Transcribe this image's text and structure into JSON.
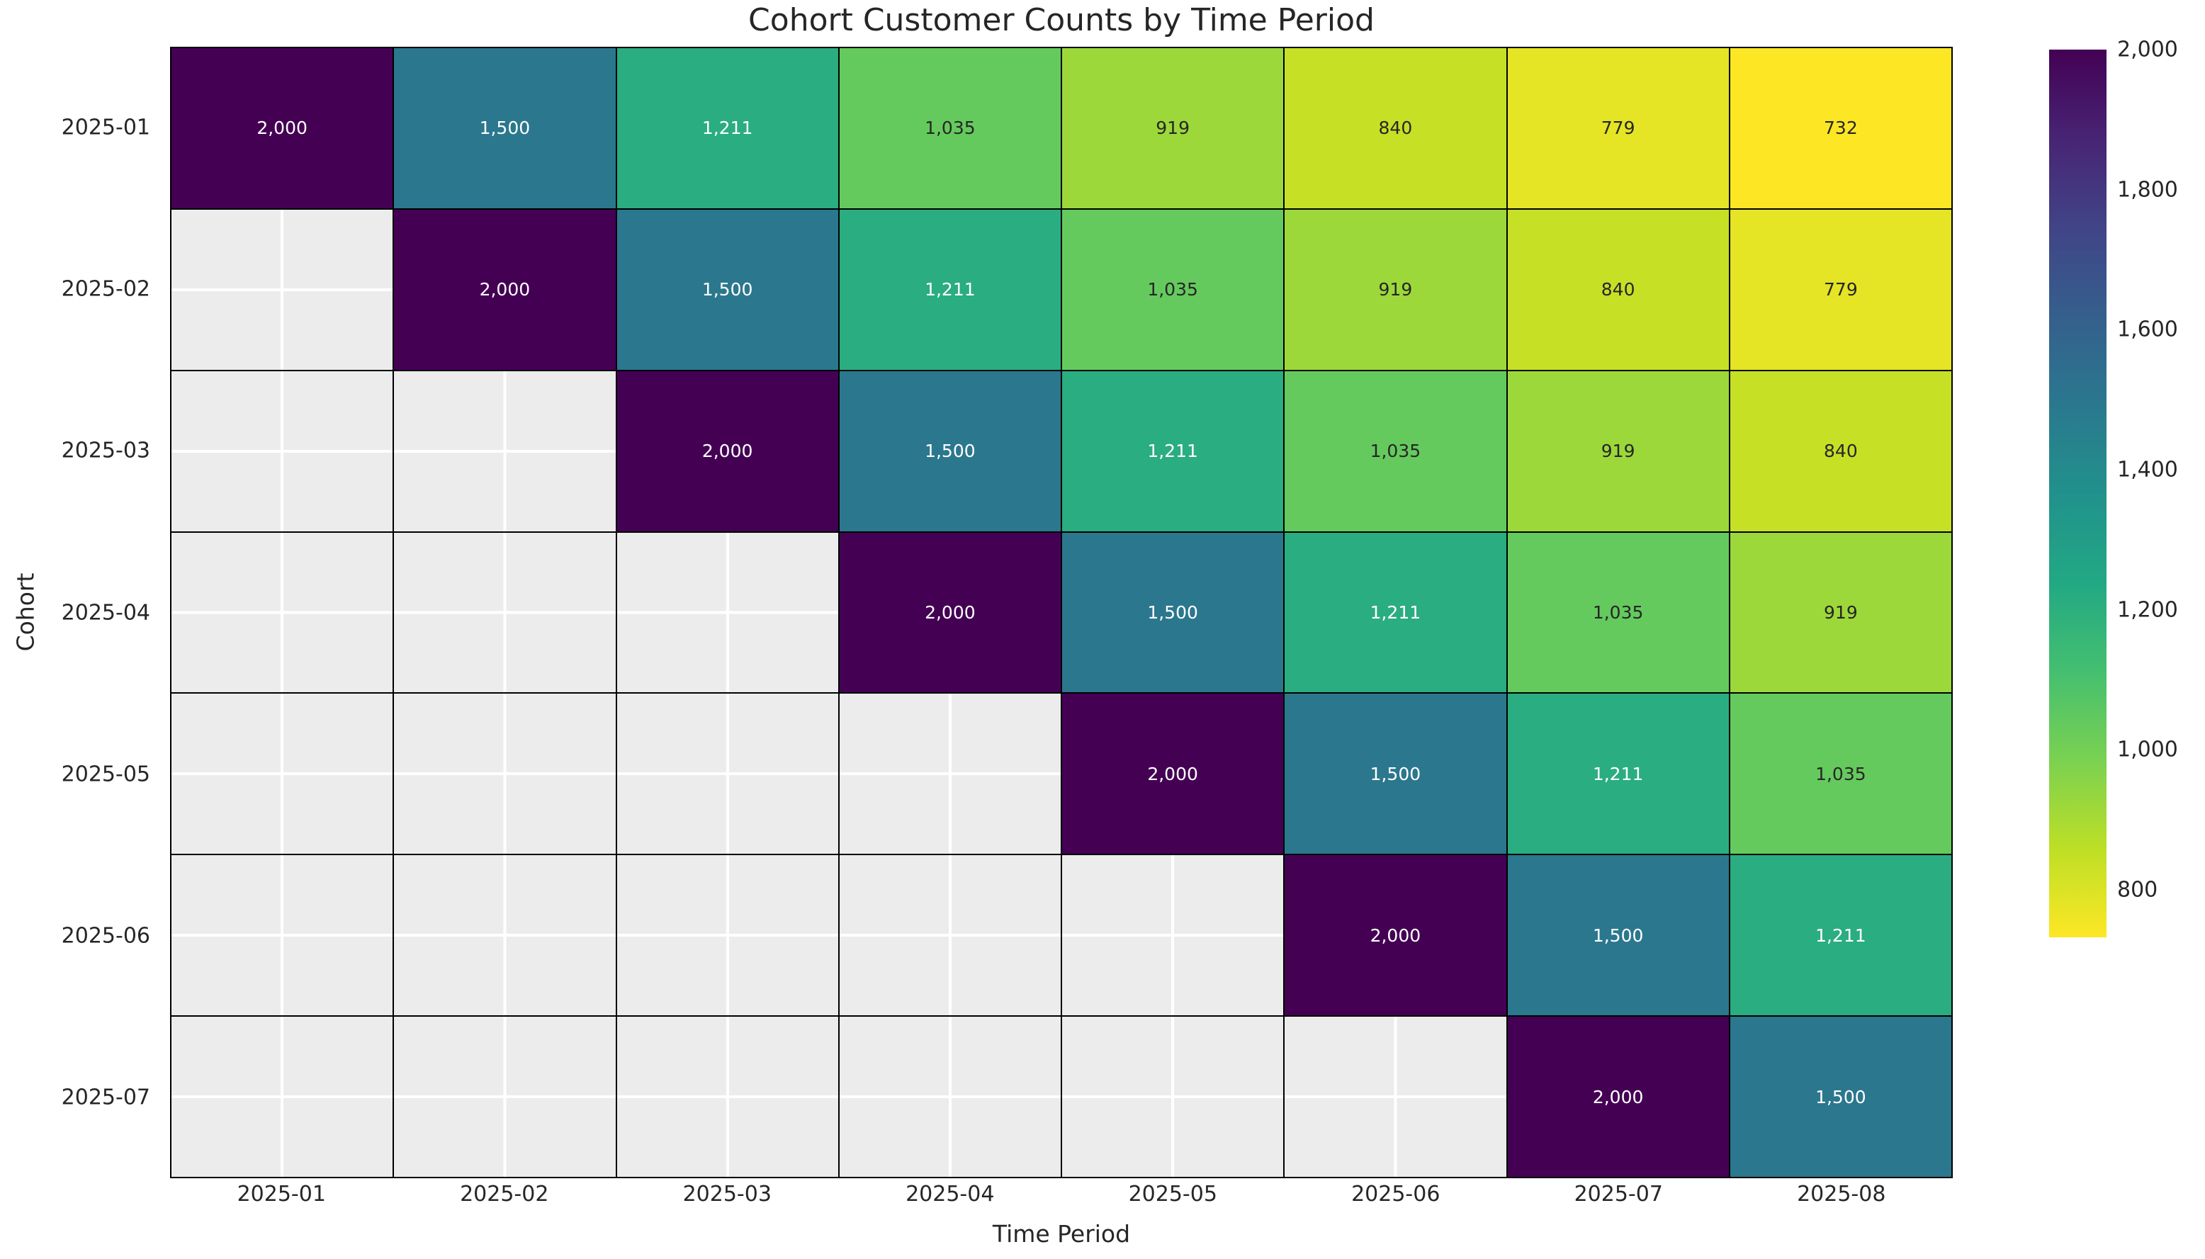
{
  "chart_data": {
    "type": "heatmap",
    "title": "Cohort Customer Counts by Time Period",
    "xlabel": "Time Period",
    "ylabel": "Cohort",
    "x_categories": [
      "2025-01",
      "2025-02",
      "2025-03",
      "2025-04",
      "2025-05",
      "2025-06",
      "2025-07",
      "2025-08"
    ],
    "y_categories": [
      "2025-01",
      "2025-02",
      "2025-03",
      "2025-04",
      "2025-05",
      "2025-06",
      "2025-07"
    ],
    "matrix": [
      [
        2000,
        1500,
        1211,
        1035,
        919,
        840,
        779,
        732
      ],
      [
        null,
        2000,
        1500,
        1211,
        1035,
        919,
        840,
        779
      ],
      [
        null,
        null,
        2000,
        1500,
        1211,
        1035,
        919,
        840
      ],
      [
        null,
        null,
        null,
        2000,
        1500,
        1211,
        1035,
        919
      ],
      [
        null,
        null,
        null,
        null,
        2000,
        1500,
        1211,
        1035
      ],
      [
        null,
        null,
        null,
        null,
        null,
        2000,
        1500,
        1211
      ],
      [
        null,
        null,
        null,
        null,
        null,
        null,
        2000,
        1500
      ]
    ],
    "vmin": 732,
    "vmax": 2000,
    "colormap_name": "viridis_r",
    "colormap_stops": [
      "#440154",
      "#482475",
      "#414487",
      "#355f8d",
      "#2a788e",
      "#21918c",
      "#22a884",
      "#44bf70",
      "#7ad151",
      "#bddf26",
      "#fde725"
    ],
    "colorbar_ticks": [
      "2,000",
      "1,800",
      "1,600",
      "1,400",
      "1,200",
      "1,000",
      "800"
    ],
    "colorbar_tick_values": [
      2000,
      1800,
      1600,
      1400,
      1200,
      1000,
      800
    ],
    "colors": {
      "empty_cell": "#ececec",
      "grid_line": "#ffffff",
      "cell_border": "#000000",
      "annotation_on_dark": "#ffffff",
      "annotation_on_light": "#262626",
      "tick_label": "#262626",
      "title": "#262626",
      "background": "#ffffff"
    },
    "legend_position": "right-colorbar",
    "grid": "white-center-lines-on-masked-cells"
  }
}
